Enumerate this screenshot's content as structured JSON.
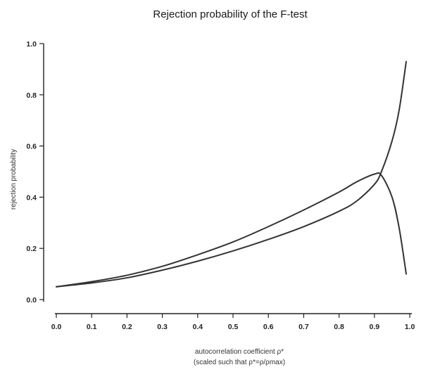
{
  "chart_data": {
    "type": "line",
    "title": "Rejection probability of the F-test",
    "xlabel": "autocorrelation coefficient ρ*",
    "xlabel_sub": "(scaled such that ρ*=ρ/ρmax)",
    "ylabel": "rejection probability",
    "xlim": [
      0.0,
      1.0
    ],
    "ylim": [
      0.0,
      1.0
    ],
    "xticks": [
      "0.0",
      "0.1",
      "0.2",
      "0.3",
      "0.4",
      "0.5",
      "0.6",
      "0.7",
      "0.8",
      "0.9",
      "1.0"
    ],
    "yticks": [
      "0.0",
      "0.2",
      "0.4",
      "0.6",
      "0.8",
      "1.0"
    ],
    "grid": false,
    "series": [
      {
        "x": [
          0.0,
          0.1,
          0.2,
          0.3,
          0.4,
          0.5,
          0.6,
          0.7,
          0.8,
          0.85,
          0.9,
          0.92,
          0.95,
          0.97,
          0.99
        ],
        "y": [
          0.05,
          0.07,
          0.095,
          0.13,
          0.175,
          0.225,
          0.285,
          0.35,
          0.42,
          0.46,
          0.49,
          0.485,
          0.4,
          0.28,
          0.1
        ]
      },
      {
        "x": [
          0.0,
          0.1,
          0.2,
          0.3,
          0.4,
          0.5,
          0.6,
          0.7,
          0.8,
          0.85,
          0.9,
          0.92,
          0.95,
          0.97,
          0.99
        ],
        "y": [
          0.05,
          0.065,
          0.085,
          0.115,
          0.15,
          0.19,
          0.235,
          0.285,
          0.345,
          0.385,
          0.45,
          0.5,
          0.62,
          0.74,
          0.93
        ]
      }
    ]
  }
}
